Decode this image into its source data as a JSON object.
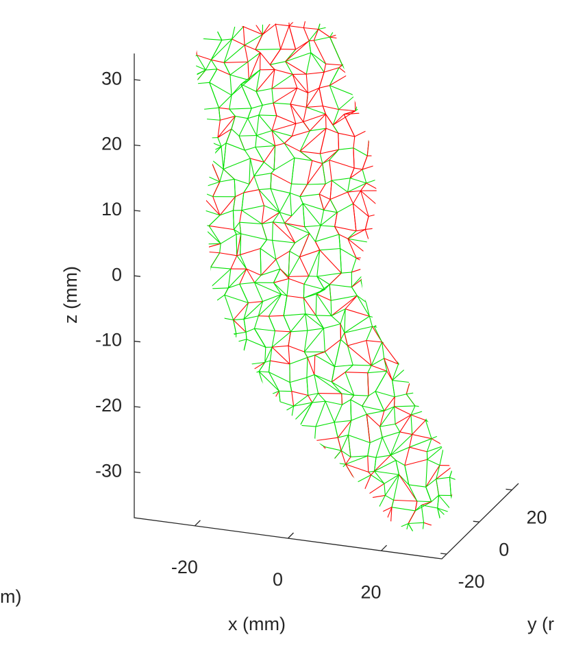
{
  "chart_data": {
    "type": "mesh3d",
    "colors": [
      "#ff0000",
      "#00e000"
    ],
    "xlabel": "x (mm)",
    "ylabel": "y (r",
    "zlabel": "z (mm)",
    "annotations": [
      "m)"
    ],
    "xlim": [
      -33,
      33
    ],
    "xticks": [
      -20,
      0,
      20
    ],
    "ylim": [
      -23,
      24
    ],
    "yticks": [
      -20,
      0,
      20
    ],
    "zlim": [
      -37,
      34
    ],
    "zticks": [
      -30,
      -20,
      -10,
      0,
      10,
      20,
      30
    ]
  }
}
